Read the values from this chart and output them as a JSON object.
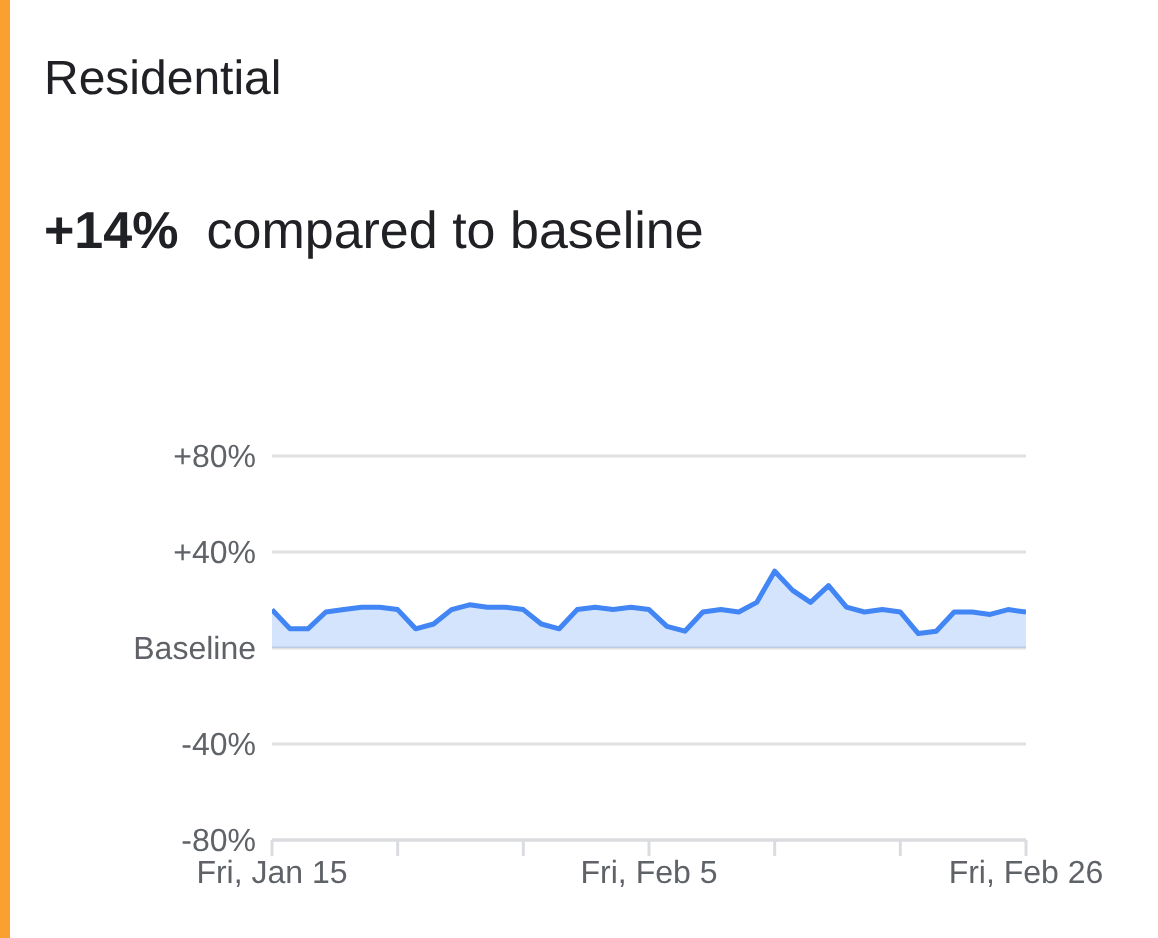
{
  "chart_data": {
    "type": "area",
    "title": "Residential",
    "subtitle": "+14% compared to baseline",
    "x": [
      "--01-15",
      "--01-16",
      "--01-17",
      "--01-18",
      "--01-19",
      "--01-20",
      "--01-21",
      "--01-22",
      "--01-23",
      "--01-24",
      "--01-25",
      "--01-26",
      "--01-27",
      "--01-28",
      "--01-29",
      "--01-30",
      "--01-31",
      "--02-01",
      "--02-02",
      "--02-03",
      "--02-04",
      "--02-05",
      "--02-06",
      "--02-07",
      "--02-08",
      "--02-09",
      "--02-10",
      "--02-11",
      "--02-12",
      "--02-13",
      "--02-14",
      "--02-15",
      "--02-16",
      "--02-17",
      "--02-18",
      "--02-19",
      "--02-20",
      "--02-21",
      "--02-22",
      "--02-23",
      "--02-24",
      "--02-25",
      "--02-26"
    ],
    "series": [
      {
        "color": "#4285f4",
        "values": [
          16,
          8,
          8,
          15,
          16,
          17,
          17,
          16,
          8,
          10,
          16,
          18,
          17,
          17,
          16,
          10,
          8,
          16,
          17,
          16,
          17,
          16,
          9,
          7,
          15,
          16,
          15,
          19,
          32,
          24,
          19,
          26,
          17,
          15,
          16,
          15,
          6,
          7,
          15,
          15,
          14,
          16,
          15
        ]
      }
    ],
    "xlim": [
      "--01-15",
      "--02-26"
    ],
    "xticks": [
      {
        "value": "--01-15",
        "label": "Fri, Jan 15"
      },
      {
        "value": "--01-22",
        "label": null
      },
      {
        "value": "--01-29",
        "label": null
      },
      {
        "value": "--02-05",
        "label": "Fri, Feb 5"
      },
      {
        "value": "--02-12",
        "label": null
      },
      {
        "value": "--02-19",
        "label": null
      },
      {
        "value": "--02-26",
        "label": "Fri, Feb 26"
      }
    ],
    "ylim": [
      -80,
      80
    ],
    "yticks": [
      {
        "value": -80,
        "label": "-80%"
      },
      {
        "value": -40,
        "label": "-40%"
      },
      {
        "value": 0,
        "label": "Baseline"
      },
      {
        "value": 40,
        "label": "+40%"
      },
      {
        "value": 80,
        "label": "+80%"
      }
    ],
    "grid": "y"
  }
}
